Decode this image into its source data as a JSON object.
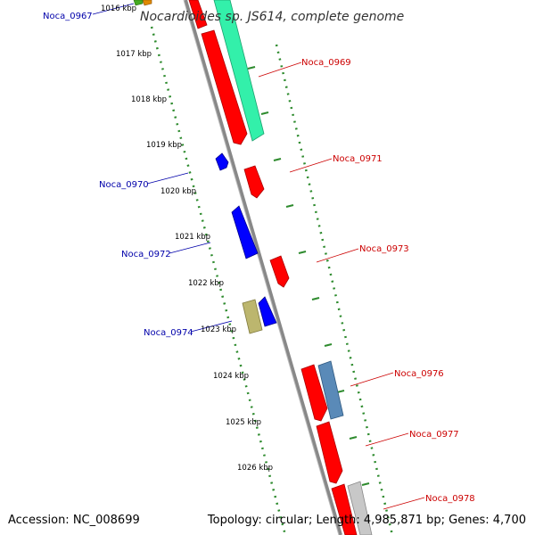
{
  "title": "Nocardioides sp. JS614, complete genome",
  "footer": {
    "accession": "Accession: NC_008699",
    "topology": "Topology: circular; Length: 4,985,871 bp; Genes: 4,700"
  },
  "colors": {
    "forward": "#ff0000",
    "reverse": "#0000ff",
    "forward_label": "#cc0000",
    "reverse_label": "#0000aa",
    "tick": "#2e8b2e",
    "backbone": "#888888"
  },
  "ticks": [
    "1016 kbp",
    "1017 kbp",
    "1018 kbp",
    "1019 kbp",
    "1020 kbp",
    "1021 kbp",
    "1022 kbp",
    "1023 kbp",
    "1024 kbp",
    "1025 kbp",
    "1026 kbp"
  ],
  "gene_labels": {
    "noca_0967": "Noca_0967",
    "noca_0969": "Noca_0969",
    "noca_0970": "Noca_0970",
    "noca_0971": "Noca_0971",
    "noca_0972": "Noca_0972",
    "noca_0973": "Noca_0973",
    "noca_0974": "Noca_0974",
    "noca_0976": "Noca_0976",
    "noca_0977": "Noca_0977",
    "noca_0978": "Noca_0978"
  }
}
